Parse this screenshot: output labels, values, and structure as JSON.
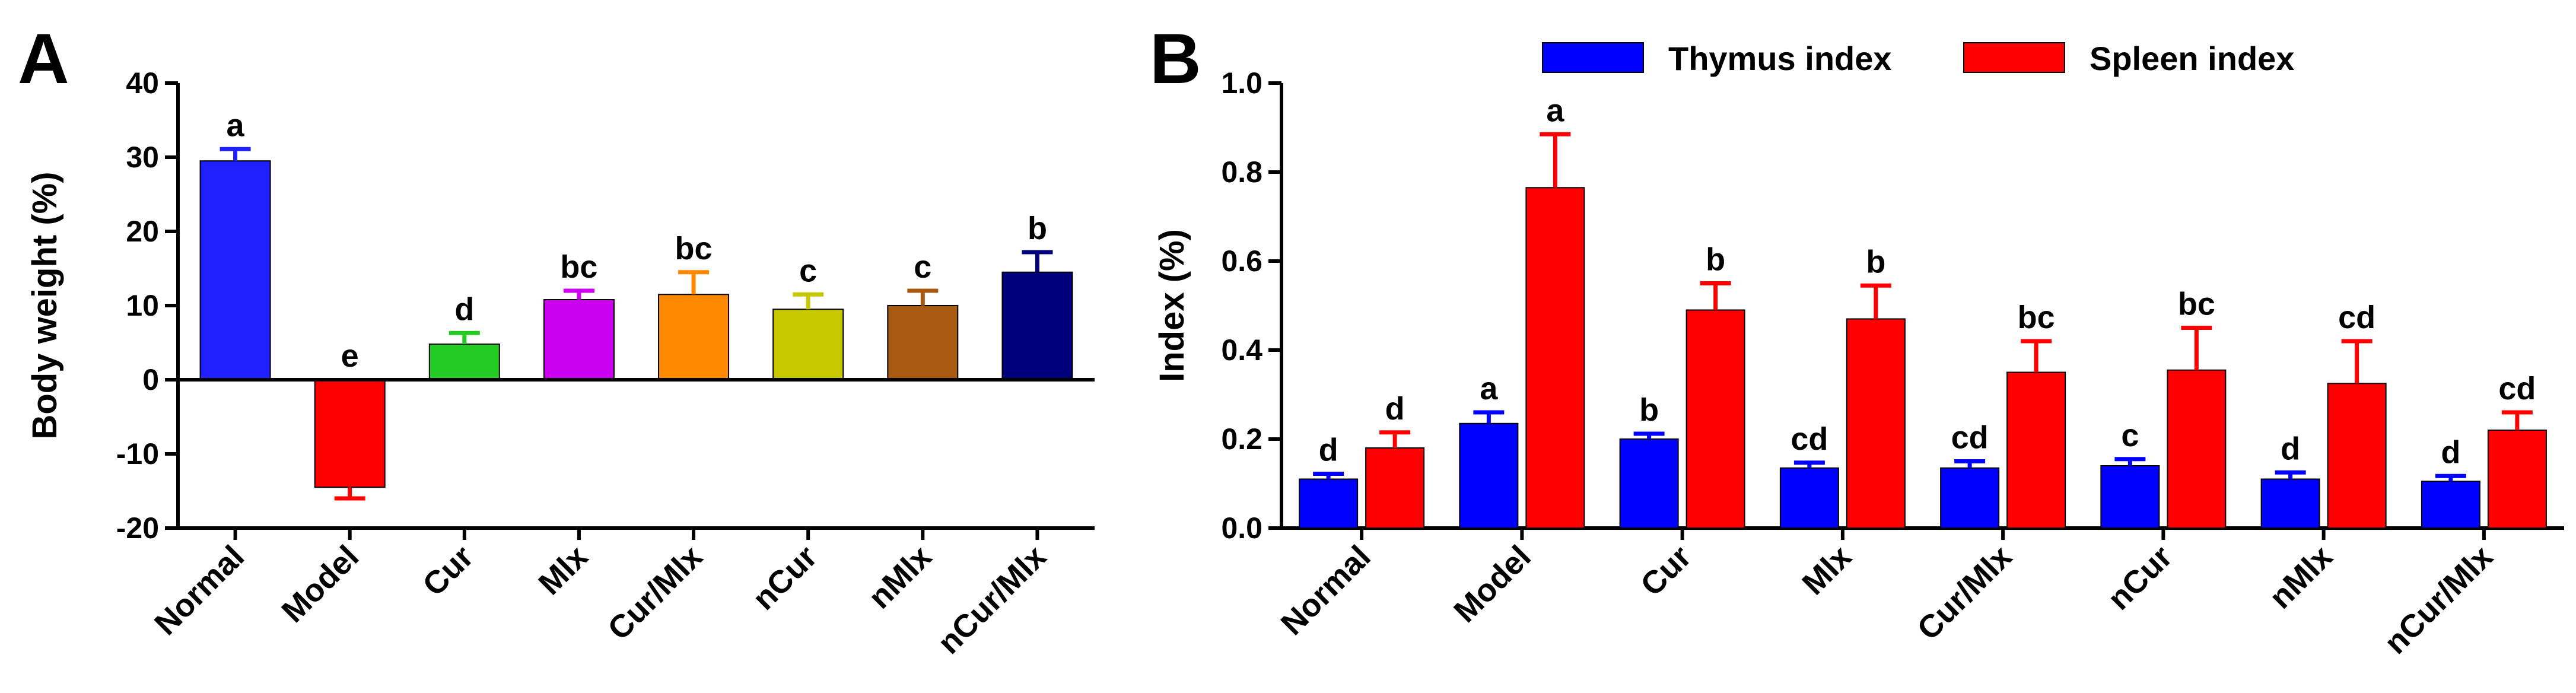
{
  "chart_data": [
    {
      "panel": "A",
      "type": "bar",
      "ylabel": "Body weight (%)",
      "ylim": [
        -20,
        40
      ],
      "yticks": [
        "-20",
        "-10",
        "0",
        "10",
        "20",
        "30",
        "40"
      ],
      "categories": [
        "Normal",
        "Model",
        "Cur",
        "Mlx",
        "Cur/Mlx",
        "nCur",
        "nMlx",
        "nCur/Mlx"
      ],
      "series": [
        {
          "name": "Body weight",
          "values": [
            29.5,
            -14.5,
            4.8,
            10.8,
            11.5,
            9.5,
            10.0,
            14.5
          ],
          "errors": [
            1.6,
            1.5,
            1.5,
            1.2,
            3.0,
            2.0,
            2.0,
            2.7
          ],
          "colors": [
            "#1f1fff",
            "#ff0000",
            "#22cc22",
            "#cc00ee",
            "#ff8800",
            "#c8c800",
            "#a85a10",
            "#00007a"
          ],
          "letters": [
            "a",
            "e",
            "d",
            "bc",
            "bc",
            "c",
            "c",
            "b"
          ]
        }
      ]
    },
    {
      "panel": "B",
      "type": "bar",
      "ylabel": "Index (%)",
      "ylim": [
        0,
        1.0
      ],
      "yticks": [
        "0.0",
        "0.2",
        "0.4",
        "0.6",
        "0.8",
        "1.0"
      ],
      "categories": [
        "Normal",
        "Model",
        "Cur",
        "Mlx",
        "Cur/Mlx",
        "nCur",
        "nMlx",
        "nCur/Mlx"
      ],
      "legend_position": "top",
      "series": [
        {
          "name": "Thymus index",
          "color": "#0000ff",
          "values": [
            0.11,
            0.235,
            0.2,
            0.135,
            0.135,
            0.14,
            0.11,
            0.105
          ],
          "errors": [
            0.012,
            0.025,
            0.012,
            0.012,
            0.015,
            0.015,
            0.015,
            0.012
          ],
          "letters": [
            "d",
            "a",
            "b",
            "cd",
            "cd",
            "c",
            "d",
            "d"
          ]
        },
        {
          "name": "Spleen index",
          "color": "#ff0000",
          "values": [
            0.18,
            0.765,
            0.49,
            0.47,
            0.35,
            0.355,
            0.325,
            0.22
          ],
          "errors": [
            0.035,
            0.12,
            0.06,
            0.075,
            0.07,
            0.095,
            0.095,
            0.04
          ],
          "letters": [
            "d",
            "a",
            "b",
            "b",
            "bc",
            "bc",
            "cd",
            "cd"
          ]
        }
      ]
    }
  ]
}
